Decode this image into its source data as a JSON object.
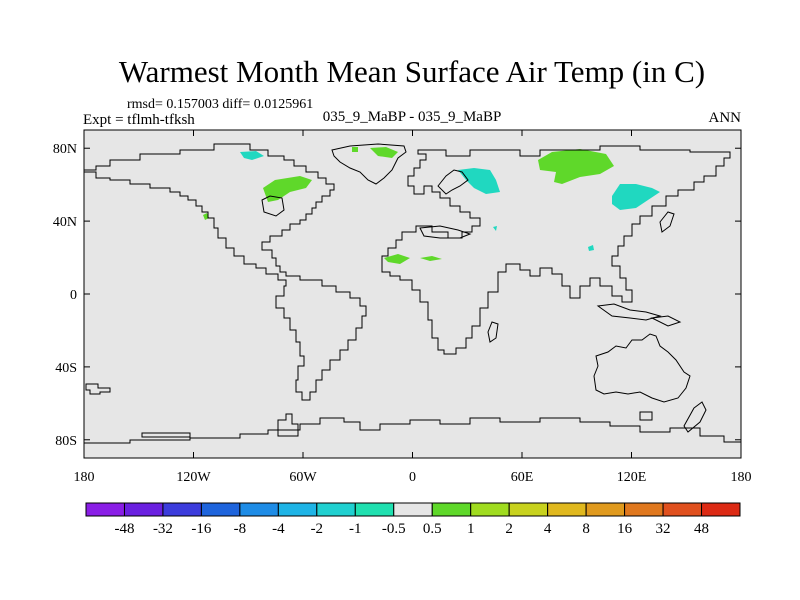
{
  "title": "Warmest Month Mean Surface Air Temp (in C)",
  "stats_line": "rmsd= 0.157003 diff= 0.0125961",
  "experiment_label": "Expt = tflmh-tfksh",
  "comparison_label": "035_9_MaBP - 035_9_MaBP",
  "period_label": "ANN",
  "colors": {
    "ocean_fill": "#e6e6e6",
    "coastline": "#000000",
    "positive_anomaly": "#5fd82a",
    "negative_anomaly": "#20d8c0"
  },
  "map": {
    "projection": "cylindrical-equidistant",
    "lon_range": [
      -180,
      180
    ],
    "lat_range": [
      -90,
      90
    ],
    "lat_ticks": [
      {
        "value": 80,
        "label": "80N"
      },
      {
        "value": 40,
        "label": "40N"
      },
      {
        "value": 0,
        "label": "0"
      },
      {
        "value": -40,
        "label": "40S"
      },
      {
        "value": -80,
        "label": "80S"
      }
    ],
    "lon_ticks": [
      {
        "value": -180,
        "label": "180"
      },
      {
        "value": -120,
        "label": "120W"
      },
      {
        "value": -60,
        "label": "60W"
      },
      {
        "value": 0,
        "label": "0"
      },
      {
        "value": 60,
        "label": "60E"
      },
      {
        "value": 120,
        "label": "120E"
      },
      {
        "value": 180,
        "label": "180"
      }
    ]
  },
  "colorbar": {
    "colors": [
      "#8a1ee6",
      "#6a20e0",
      "#3c3cdc",
      "#1e64dc",
      "#1e8ce6",
      "#1eb4e6",
      "#20d0d0",
      "#20e0b0",
      "#e6e6e6",
      "#5fd82a",
      "#a0dc20",
      "#c8d21e",
      "#e0b81e",
      "#e09a1e",
      "#e0781e",
      "#e0501e",
      "#dc2a14"
    ],
    "labels": [
      "-48",
      "-32",
      "-16",
      "-8",
      "-4",
      "-2",
      "-1",
      "-0.5",
      "0.5",
      "1",
      "2",
      "4",
      "8",
      "16",
      "32",
      "48"
    ]
  }
}
